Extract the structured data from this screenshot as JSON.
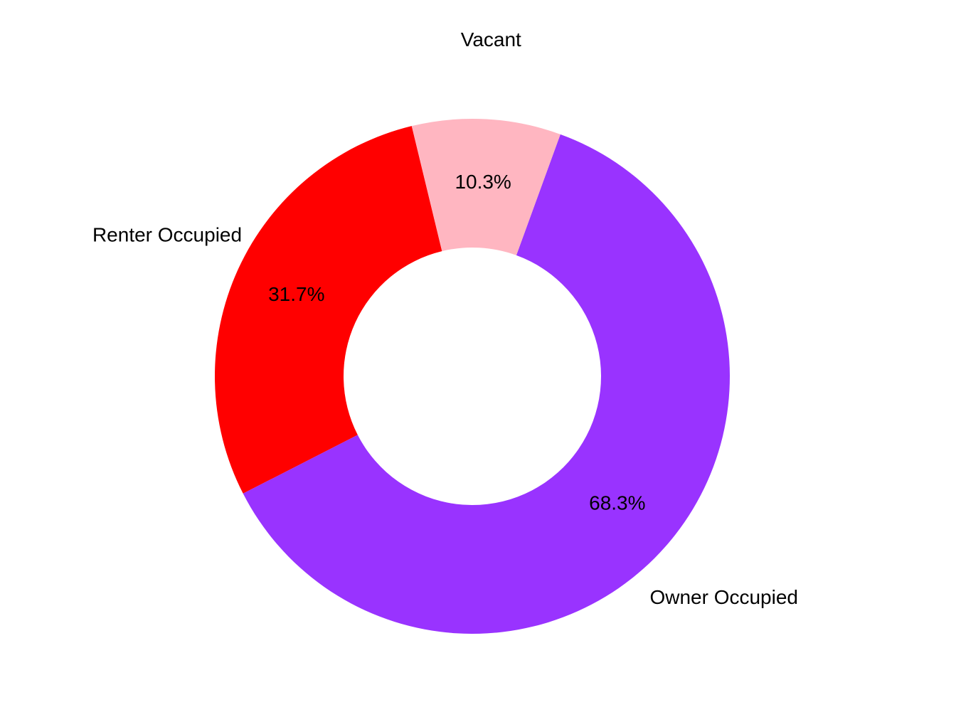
{
  "chart_data": {
    "type": "pie",
    "variant": "donut",
    "categories": [
      "Owner Occupied",
      "Renter Occupied",
      "Vacant"
    ],
    "values": [
      68.3,
      31.7,
      10.3
    ],
    "data_labels": [
      "68.3%",
      "31.7%",
      "10.3%"
    ],
    "colors": [
      "#9933FF",
      "#FF0000",
      "#FFB6C1"
    ],
    "legend": "none",
    "grid": false
  }
}
